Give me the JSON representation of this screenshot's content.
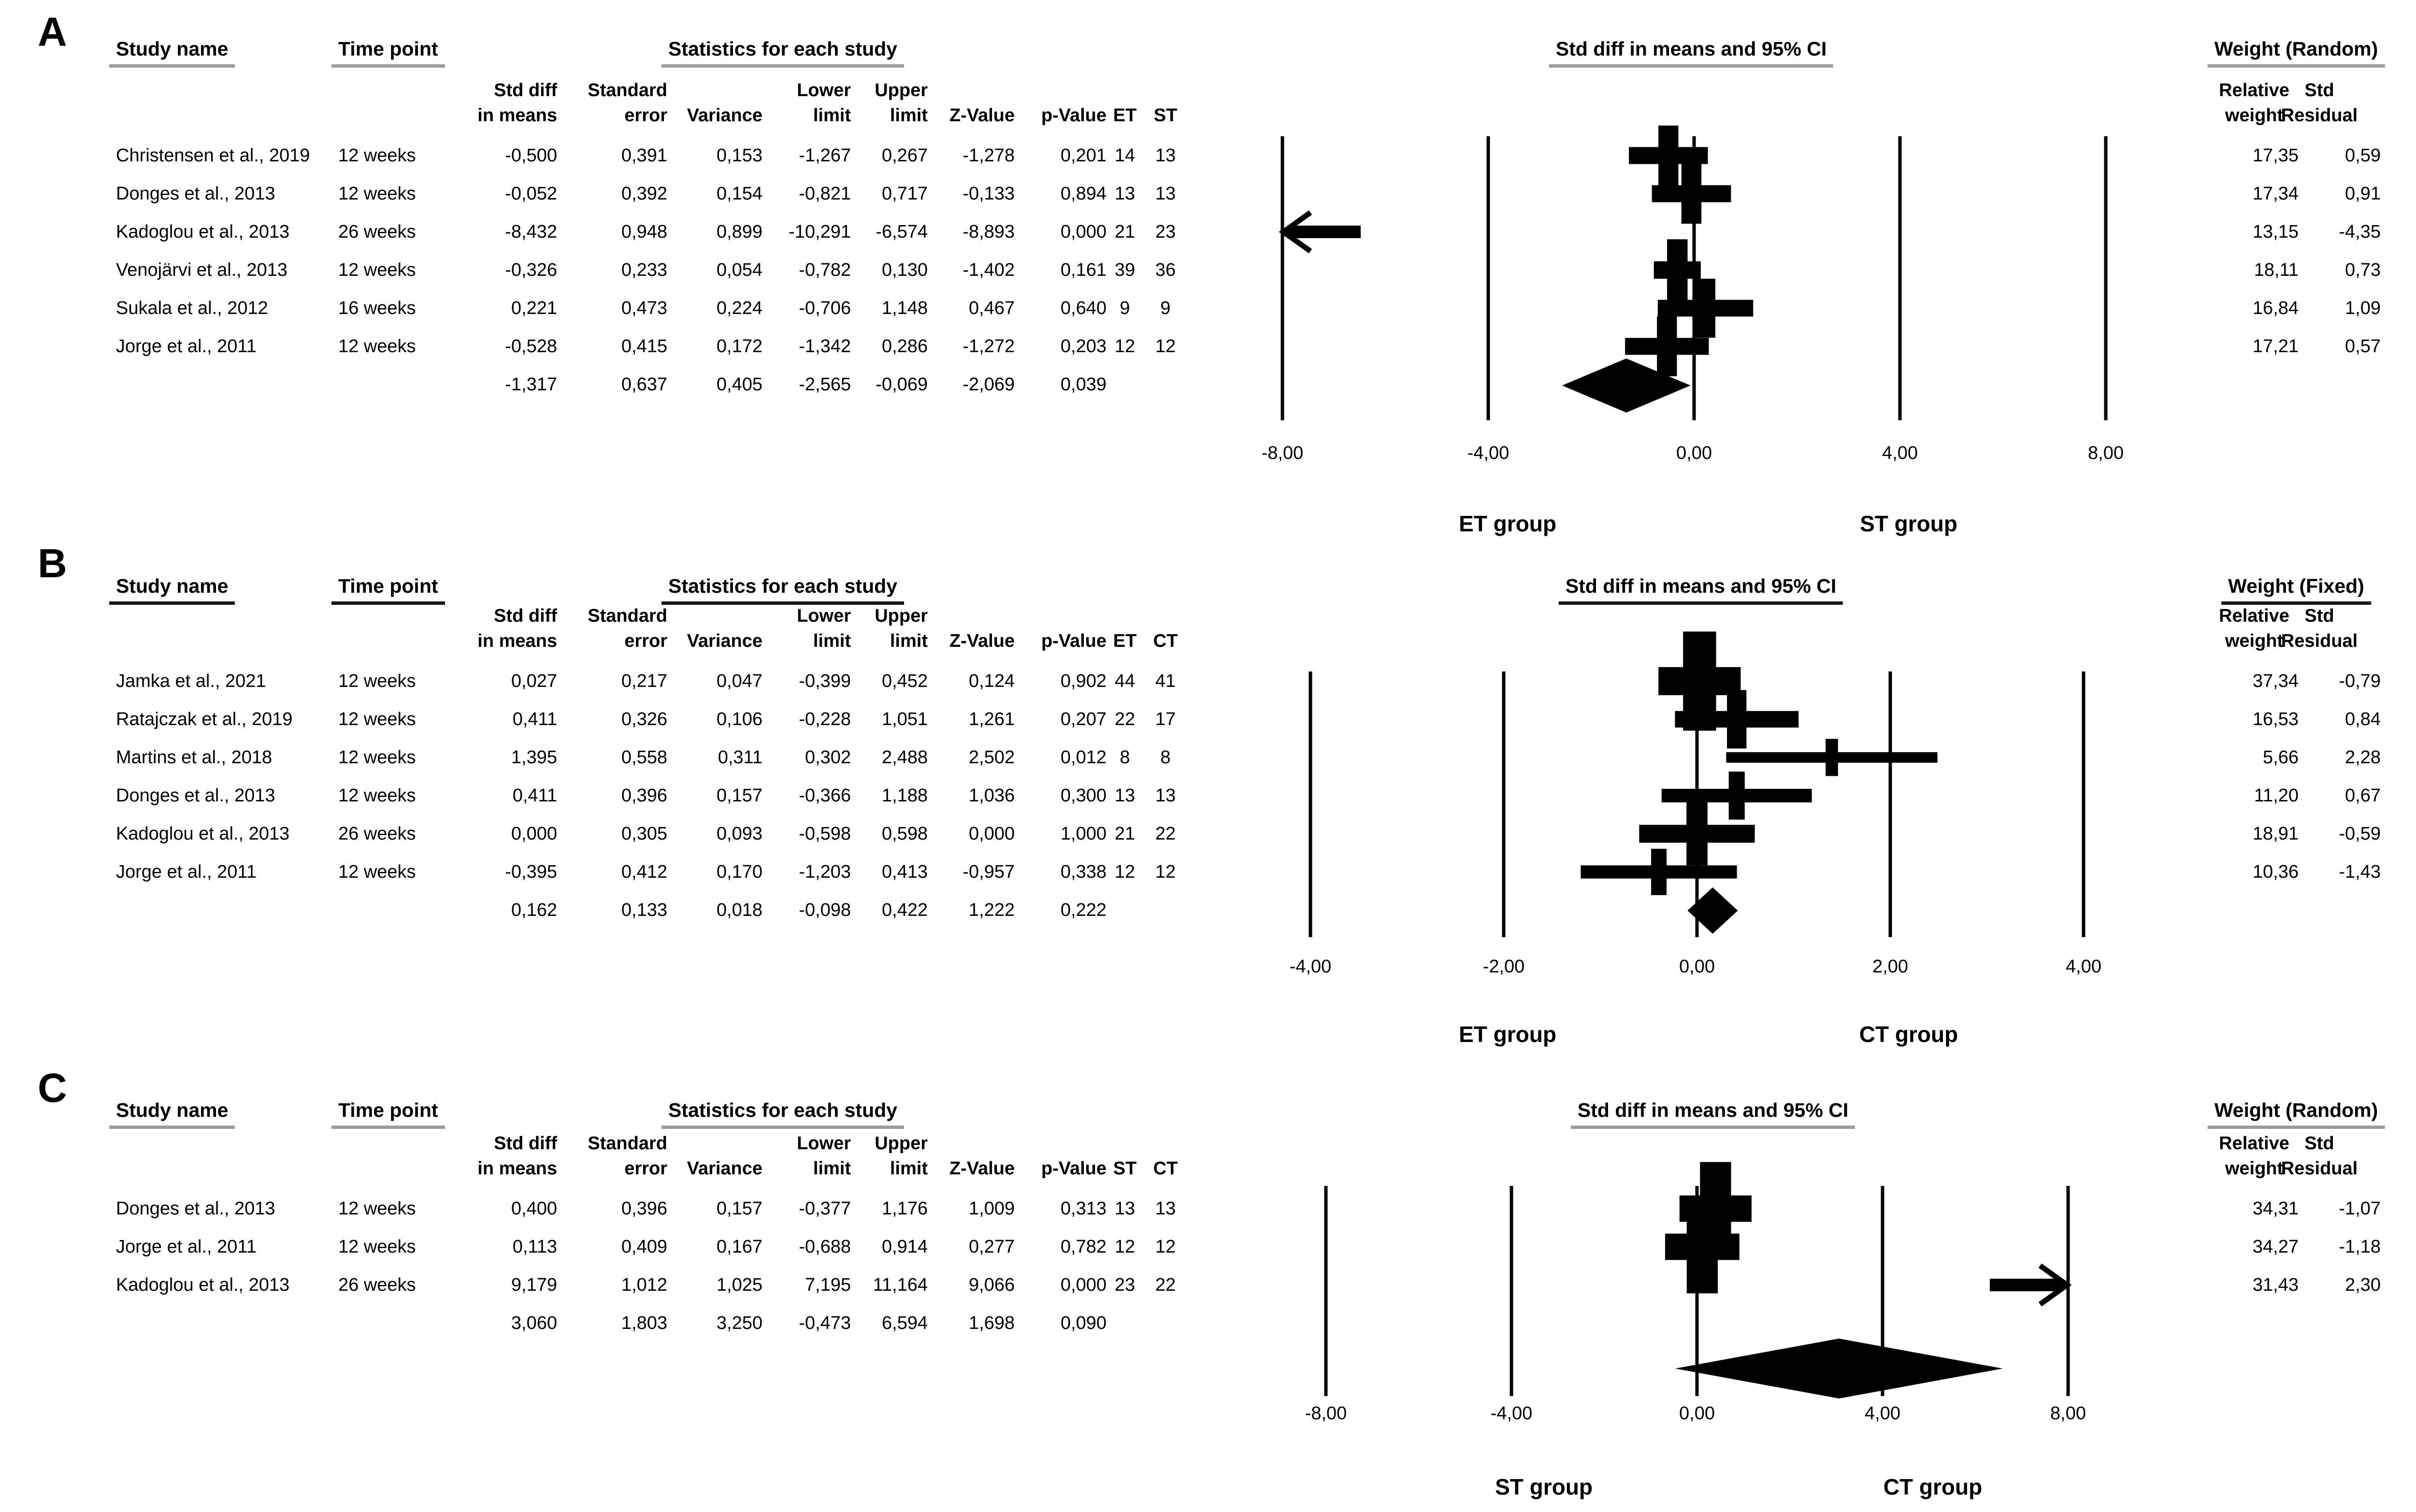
{
  "chart_data": {
    "type": "forest",
    "figure_kind": "meta-analysis forest plots (3 panels)",
    "panels": [
      {
        "label": "A",
        "headers": {
          "study": "Study name",
          "time": "Time point",
          "stats": "Statistics for each study",
          "plot": "Std diff in means and 95% CI",
          "weight": "Weight (Random)"
        },
        "col_headers": [
          {
            "lines": [
              "Std diff",
              "in means"
            ]
          },
          {
            "lines": [
              "Standard",
              "error"
            ]
          },
          {
            "lines": [
              "",
              "Variance"
            ]
          },
          {
            "lines": [
              "Lower",
              "limit"
            ]
          },
          {
            "lines": [
              "Upper",
              "limit"
            ]
          },
          {
            "lines": [
              "",
              "Z-Value"
            ]
          },
          {
            "lines": [
              "",
              "p-Value"
            ]
          },
          {
            "lines": [
              "",
              "ET"
            ]
          },
          {
            "lines": [
              "",
              "ST"
            ]
          }
        ],
        "weight_cols": {
          "col1": [
            "Relative",
            "weight"
          ],
          "col2": [
            "Std",
            "Residual"
          ]
        },
        "rows": [
          {
            "study": "Christensen et al., 2019",
            "time": "12 weeks",
            "cells": [
              "-0,500",
              "0,391",
              "0,153",
              "-1,267",
              "0,267",
              "-1,278",
              "0,201"
            ],
            "n1": "14",
            "n2": "13",
            "weight_txt": "17,35",
            "residual_txt": "0,59",
            "est": -0.5,
            "lo": -1.267,
            "hi": 0.267,
            "weight": 17.35,
            "arrow": null
          },
          {
            "study": "Donges et al., 2013",
            "time": "12 weeks",
            "cells": [
              "-0,052",
              "0,392",
              "0,154",
              "-0,821",
              "0,717",
              "-0,133",
              "0,894"
            ],
            "n1": "13",
            "n2": "13",
            "weight_txt": "17,34",
            "residual_txt": "0,91",
            "est": -0.052,
            "lo": -0.821,
            "hi": 0.717,
            "weight": 17.34,
            "arrow": null
          },
          {
            "study": "Kadoglou et al., 2013",
            "time": "26 weeks",
            "cells": [
              "-8,432",
              "0,948",
              "0,899",
              "-10,291",
              "-6,574",
              "-8,893",
              "0,000"
            ],
            "n1": "21",
            "n2": "23",
            "weight_txt": "13,15",
            "residual_txt": "-4,35",
            "est": -8.432,
            "lo": -10.291,
            "hi": -6.574,
            "weight": 13.15,
            "arrow": "left"
          },
          {
            "study": "Venojärvi et al., 2013",
            "time": "12 weeks",
            "cells": [
              "-0,326",
              "0,233",
              "0,054",
              "-0,782",
              "0,130",
              "-1,402",
              "0,161"
            ],
            "n1": "39",
            "n2": "36",
            "weight_txt": "18,11",
            "residual_txt": "0,73",
            "est": -0.326,
            "lo": -0.782,
            "hi": 0.13,
            "weight": 18.11,
            "arrow": null
          },
          {
            "study": "Sukala et al., 2012",
            "time": "16 weeks",
            "cells": [
              "0,221",
              "0,473",
              "0,224",
              "-0,706",
              "1,148",
              "0,467",
              "0,640"
            ],
            "n1": "9",
            "n2": "9",
            "weight_txt": "16,84",
            "residual_txt": "1,09",
            "est": 0.221,
            "lo": -0.706,
            "hi": 1.148,
            "weight": 16.84,
            "arrow": null
          },
          {
            "study": "Jorge et al., 2011",
            "time": "12 weeks",
            "cells": [
              "-0,528",
              "0,415",
              "0,172",
              "-1,342",
              "0,286",
              "-1,272",
              "0,203"
            ],
            "n1": "12",
            "n2": "12",
            "weight_txt": "17,21",
            "residual_txt": "0,57",
            "est": -0.528,
            "lo": -1.342,
            "hi": 0.286,
            "weight": 17.21,
            "arrow": null
          }
        ],
        "summary": {
          "cells": [
            "-1,317",
            "0,637",
            "0,405",
            "-2,565",
            "-0,069",
            "-2,069",
            "0,039"
          ],
          "est": -1.317,
          "lo": -2.565,
          "hi": -0.069
        },
        "axis": {
          "min": -8,
          "max": 8,
          "ticks": [
            -8,
            -4,
            0,
            4,
            8
          ],
          "tick_labels": [
            "-8,00",
            "-4,00",
            "0,00",
            "4,00",
            "8,00"
          ]
        },
        "groups": {
          "left": "ET group",
          "right": "ST group"
        }
      },
      {
        "label": "B",
        "headers": {
          "study": "Study name",
          "time": "Time point",
          "stats": "Statistics for each study",
          "plot": "Std diff in means and 95% CI",
          "weight": "Weight (Fixed)"
        },
        "col_headers": [
          {
            "lines": [
              "Std diff",
              "in means"
            ]
          },
          {
            "lines": [
              "Standard",
              "error"
            ]
          },
          {
            "lines": [
              "",
              "Variance"
            ]
          },
          {
            "lines": [
              "Lower",
              "limit"
            ]
          },
          {
            "lines": [
              "Upper",
              "limit"
            ]
          },
          {
            "lines": [
              "",
              "Z-Value"
            ]
          },
          {
            "lines": [
              "",
              "p-Value"
            ]
          },
          {
            "lines": [
              "",
              "ET"
            ]
          },
          {
            "lines": [
              "",
              "CT"
            ]
          }
        ],
        "weight_cols": {
          "col1": [
            "Relative",
            "weight"
          ],
          "col2": [
            "Std",
            "Residual"
          ]
        },
        "rows": [
          {
            "study": "Jamka et al., 2021",
            "time": "12 weeks",
            "cells": [
              "0,027",
              "0,217",
              "0,047",
              "-0,399",
              "0,452",
              "0,124",
              "0,902"
            ],
            "n1": "44",
            "n2": "41",
            "weight_txt": "37,34",
            "residual_txt": "-0,79",
            "est": 0.027,
            "lo": -0.399,
            "hi": 0.452,
            "weight": 37.34,
            "arrow": null
          },
          {
            "study": "Ratajczak et al., 2019",
            "time": "12 weeks",
            "cells": [
              "0,411",
              "0,326",
              "0,106",
              "-0,228",
              "1,051",
              "1,261",
              "0,207"
            ],
            "n1": "22",
            "n2": "17",
            "weight_txt": "16,53",
            "residual_txt": "0,84",
            "est": 0.411,
            "lo": -0.228,
            "hi": 1.051,
            "weight": 16.53,
            "arrow": null
          },
          {
            "study": "Martins et al., 2018",
            "time": "12 weeks",
            "cells": [
              "1,395",
              "0,558",
              "0,311",
              "0,302",
              "2,488",
              "2,502",
              "0,012"
            ],
            "n1": "8",
            "n2": "8",
            "weight_txt": "5,66",
            "residual_txt": "2,28",
            "est": 1.395,
            "lo": 0.302,
            "hi": 2.488,
            "weight": 5.66,
            "arrow": null
          },
          {
            "study": "Donges et al., 2013",
            "time": "12 weeks",
            "cells": [
              "0,411",
              "0,396",
              "0,157",
              "-0,366",
              "1,188",
              "1,036",
              "0,300"
            ],
            "n1": "13",
            "n2": "13",
            "weight_txt": "11,20",
            "residual_txt": "0,67",
            "est": 0.411,
            "lo": -0.366,
            "hi": 1.188,
            "weight": 11.2,
            "arrow": null
          },
          {
            "study": "Kadoglou et al., 2013",
            "time": "26 weeks",
            "cells": [
              "0,000",
              "0,305",
              "0,093",
              "-0,598",
              "0,598",
              "0,000",
              "1,000"
            ],
            "n1": "21",
            "n2": "22",
            "weight_txt": "18,91",
            "residual_txt": "-0,59",
            "est": 0.0,
            "lo": -0.598,
            "hi": 0.598,
            "weight": 18.91,
            "arrow": null
          },
          {
            "study": "Jorge et al., 2011",
            "time": "12 weeks",
            "cells": [
              "-0,395",
              "0,412",
              "0,170",
              "-1,203",
              "0,413",
              "-0,957",
              "0,338"
            ],
            "n1": "12",
            "n2": "12",
            "weight_txt": "10,36",
            "residual_txt": "-1,43",
            "est": -0.395,
            "lo": -1.203,
            "hi": 0.413,
            "weight": 10.36,
            "arrow": null
          }
        ],
        "summary": {
          "cells": [
            "0,162",
            "0,133",
            "0,018",
            "-0,098",
            "0,422",
            "1,222",
            "0,222"
          ],
          "est": 0.162,
          "lo": -0.098,
          "hi": 0.422
        },
        "axis": {
          "min": -4,
          "max": 4,
          "ticks": [
            -4,
            -2,
            0,
            2,
            4
          ],
          "tick_labels": [
            "-4,00",
            "-2,00",
            "0,00",
            "2,00",
            "4,00"
          ]
        },
        "groups": {
          "left": "ET group",
          "right": "CT group"
        }
      },
      {
        "label": "C",
        "headers": {
          "study": "Study name",
          "time": "Time point",
          "stats": "Statistics for each study",
          "plot": "Std diff in means and 95% CI",
          "weight": "Weight (Random)"
        },
        "col_headers": [
          {
            "lines": [
              "Std diff",
              "in means"
            ]
          },
          {
            "lines": [
              "Standard",
              "error"
            ]
          },
          {
            "lines": [
              "",
              "Variance"
            ]
          },
          {
            "lines": [
              "Lower",
              "limit"
            ]
          },
          {
            "lines": [
              "Upper",
              "limit"
            ]
          },
          {
            "lines": [
              "",
              "Z-Value"
            ]
          },
          {
            "lines": [
              "",
              "p-Value"
            ]
          },
          {
            "lines": [
              "",
              "ST"
            ]
          },
          {
            "lines": [
              "",
              "CT"
            ]
          }
        ],
        "weight_cols": {
          "col1": [
            "Relative",
            "weight"
          ],
          "col2": [
            "Std",
            "Residual"
          ]
        },
        "rows": [
          {
            "study": "Donges et al., 2013",
            "time": "12 weeks",
            "cells": [
              "0,400",
              "0,396",
              "0,157",
              "-0,377",
              "1,176",
              "1,009",
              "0,313"
            ],
            "n1": "13",
            "n2": "13",
            "weight_txt": "34,31",
            "residual_txt": "-1,07",
            "est": 0.4,
            "lo": -0.377,
            "hi": 1.176,
            "weight": 34.31,
            "arrow": null
          },
          {
            "study": "Jorge et al., 2011",
            "time": "12 weeks",
            "cells": [
              "0,113",
              "0,409",
              "0,167",
              "-0,688",
              "0,914",
              "0,277",
              "0,782"
            ],
            "n1": "12",
            "n2": "12",
            "weight_txt": "34,27",
            "residual_txt": "-1,18",
            "est": 0.113,
            "lo": -0.688,
            "hi": 0.914,
            "weight": 34.27,
            "arrow": null
          },
          {
            "study": "Kadoglou et al., 2013",
            "time": "26 weeks",
            "cells": [
              "9,179",
              "1,012",
              "1,025",
              "7,195",
              "11,164",
              "9,066",
              "0,000"
            ],
            "n1": "23",
            "n2": "22",
            "weight_txt": "31,43",
            "residual_txt": "2,30",
            "est": 9.179,
            "lo": 7.195,
            "hi": 11.164,
            "weight": 31.43,
            "arrow": "right"
          }
        ],
        "summary": {
          "cells": [
            "3,060",
            "1,803",
            "3,250",
            "-0,473",
            "6,594",
            "1,698",
            "0,090"
          ],
          "est": 3.06,
          "lo": -0.473,
          "hi": 6.594
        },
        "axis": {
          "min": -8,
          "max": 8,
          "ticks": [
            -8,
            -4,
            0,
            4,
            8
          ],
          "tick_labels": [
            "-8,00",
            "-4,00",
            "0,00",
            "4,00",
            "8,00"
          ]
        },
        "groups": {
          "left": "ST group",
          "right": "CT group"
        }
      }
    ]
  }
}
